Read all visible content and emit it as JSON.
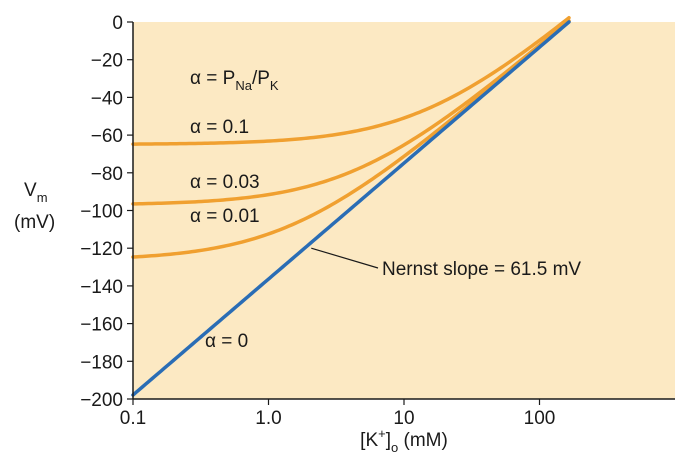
{
  "chart_data": {
    "type": "line",
    "title": "",
    "xscale": "log",
    "xlim": [
      0.1,
      1000
    ],
    "ylim": [
      -200,
      0
    ],
    "xticks": [
      {
        "value": 0.1,
        "label": "0.1"
      },
      {
        "value": 1,
        "label": "1.0"
      },
      {
        "value": 10,
        "label": "10"
      },
      {
        "value": 100,
        "label": "100"
      }
    ],
    "yticks": [
      {
        "value": 0,
        "label": "0"
      },
      {
        "value": -20,
        "label": "−20"
      },
      {
        "value": -40,
        "label": "−40"
      },
      {
        "value": -60,
        "label": "−60"
      },
      {
        "value": -80,
        "label": "−80"
      },
      {
        "value": -100,
        "label": "−100"
      },
      {
        "value": -120,
        "label": "−120"
      },
      {
        "value": -140,
        "label": "−140"
      },
      {
        "value": -160,
        "label": "−160"
      },
      {
        "value": -180,
        "label": "−180"
      },
      {
        "value": -200,
        "label": "−200"
      }
    ],
    "xlabel": {
      "pre": "[K",
      "sup": "+",
      "post": "]",
      "sub": "o",
      "tail": " (mM)"
    },
    "ylabel": {
      "line1_main": "V",
      "line1_sub": "m",
      "line2": "(mV)"
    },
    "grid": false,
    "colors": {
      "background": "#fce9c3",
      "nernst": "#2a6db5",
      "curves": "#f0a030",
      "text": "#1a1a1a"
    },
    "model": {
      "K_in": 165,
      "Na_out": 145,
      "slope": 61.5
    },
    "series": [
      {
        "key": "a0",
        "alpha": 0,
        "color": "#2a6db5",
        "x": [
          0.1,
          0.2,
          0.5,
          1,
          2,
          5,
          10,
          20,
          50,
          100,
          165
        ],
        "y": [
          -197.9,
          -179.4,
          -154.9,
          -136.4,
          -117.9,
          -93.4,
          -74.9,
          -56.4,
          -31.9,
          -13.4,
          0
        ]
      },
      {
        "key": "a001",
        "alpha": 0.01,
        "color": "#f0a030",
        "x": [
          0.1,
          0.2,
          0.5,
          1,
          2,
          5,
          10,
          20,
          50,
          100,
          165
        ],
        "y": [
          -123.4,
          -122.6,
          -120.3,
          -116.8,
          -110.7,
          -95.7,
          -80.6,
          -61.2,
          -35.4,
          -15.8,
          -1.5
        ]
      },
      {
        "key": "a003",
        "alpha": 0.03,
        "color": "#f0a030",
        "x": [
          0.1,
          0.2,
          0.5,
          1,
          2,
          5,
          10,
          20,
          50,
          100,
          165
        ],
        "y": [
          -94.3,
          -94.0,
          -93.3,
          -92.1,
          -89.9,
          -83.8,
          -76.1,
          -63.5,
          -40.5,
          -20.6,
          -4.3
        ]
      },
      {
        "key": "a01",
        "alpha": 0.1,
        "color": "#f0a030",
        "x": [
          0.1,
          0.2,
          0.5,
          1,
          2,
          5,
          10,
          20,
          50,
          100,
          165
        ],
        "y": [
          -62.1,
          -62.0,
          -61.8,
          -61.4,
          -60.7,
          -58.7,
          -55.7,
          -50.4,
          -37.7,
          -23.4,
          -9.7
        ]
      }
    ],
    "annotations": {
      "alpha_def": {
        "lhs": "α = P",
        "na": "Na",
        "slash": "/P",
        "k": "K"
      },
      "alpha_01": "α = 0.1",
      "alpha_003": "α = 0.03",
      "alpha_001": "α = 0.01",
      "alpha_0": "α = 0",
      "nernst": "Nernst slope = 61.5 mV"
    }
  }
}
